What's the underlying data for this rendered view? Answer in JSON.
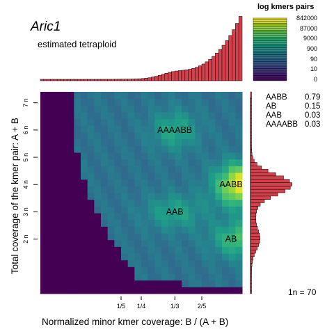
{
  "title": "Aric1",
  "subtitle": "estimated tetraploid",
  "legend": {
    "title": "log kmers pairs",
    "ticks": [
      "842000",
      "87000",
      "9000",
      "900",
      "90",
      "10",
      "0"
    ]
  },
  "proportions": [
    {
      "label": "AABB",
      "value": "0.79"
    },
    {
      "label": "AB",
      "value": "0.15"
    },
    {
      "label": "AAB",
      "value": "0.03"
    },
    {
      "label": "AAAABB",
      "value": "0.03"
    }
  ],
  "ploidy_note": "1n =  70",
  "colors": {
    "low": "#440154",
    "mid": "#21918c",
    "high": "#fde725",
    "histogram": "#d4404c"
  },
  "chart_data": {
    "type": "heatmap",
    "xlabel": "Normalized minor kmer coverage: B / (A + B)",
    "ylabel": "Total coverage of the kmer pair: A + B",
    "xlim": [
      0,
      0.5
    ],
    "ylim": [
      0,
      7.4
    ],
    "y_unit": 70,
    "x_ticks": [
      {
        "label": "1/5",
        "value": 0.2
      },
      {
        "label": "1/4",
        "value": 0.25
      },
      {
        "label": "1/3",
        "value": 0.3333
      },
      {
        "label": "2/5",
        "value": 0.4
      }
    ],
    "y_ticks": [
      {
        "label": "2 n",
        "value": 2
      },
      {
        "label": "3 n",
        "value": 3
      },
      {
        "label": "4 n",
        "value": 4
      },
      {
        "label": "5 n",
        "value": 5
      },
      {
        "label": "6 n",
        "value": 6
      },
      {
        "label": "7 n",
        "value": 7
      }
    ],
    "peaks": [
      {
        "label": "AAAABB",
        "x": 0.333,
        "y": 6.0
      },
      {
        "label": "AABB",
        "x": 0.48,
        "y": 4.0
      },
      {
        "label": "AAB",
        "x": 0.333,
        "y": 3.0
      },
      {
        "label": "AB",
        "x": 0.49,
        "y": 2.0
      }
    ]
  }
}
